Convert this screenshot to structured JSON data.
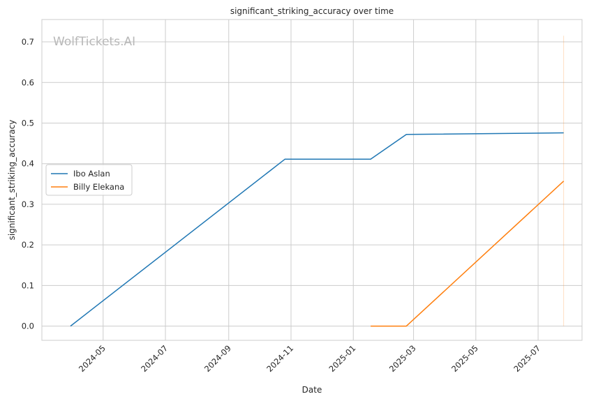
{
  "chart_data": {
    "type": "line",
    "title": "significant_striking_accuracy over time",
    "xlabel": "Date",
    "ylabel": "significant_striking_accuracy",
    "watermark": "WolfTickets.AI",
    "x_ticks": [
      "2024-05",
      "2024-07",
      "2024-09",
      "2024-11",
      "2025-01",
      "2025-03",
      "2025-05",
      "2025-07"
    ],
    "y_ticks": [
      "0.0",
      "0.1",
      "0.2",
      "0.3",
      "0.4",
      "0.5",
      "0.6",
      "0.7"
    ],
    "ylim": [
      -0.035,
      0.755
    ],
    "xlim": [
      "2024-03-02",
      "2025-08-13"
    ],
    "grid": true,
    "legend_position": "center-left",
    "series": [
      {
        "name": "Ibo Aslan",
        "color": "#1f77b4",
        "points": [
          {
            "x": "2024-03-30",
            "y": 0.0
          },
          {
            "x": "2024-10-26",
            "y": 0.411
          },
          {
            "x": "2025-01-18",
            "y": 0.411
          },
          {
            "x": "2025-02-22",
            "y": 0.472
          },
          {
            "x": "2025-07-26",
            "y": 0.476
          }
        ]
      },
      {
        "name": "Billy Elekana",
        "color": "#ff7f0e",
        "points": [
          {
            "x": "2025-01-18",
            "y": 0.0
          },
          {
            "x": "2025-02-22",
            "y": 0.0
          },
          {
            "x": "2025-07-26",
            "y": 0.357
          }
        ]
      }
    ],
    "reference_line": {
      "x": "2025-07-26",
      "y_range": [
        0.0,
        0.715
      ],
      "color": "#ff7f0e"
    }
  }
}
